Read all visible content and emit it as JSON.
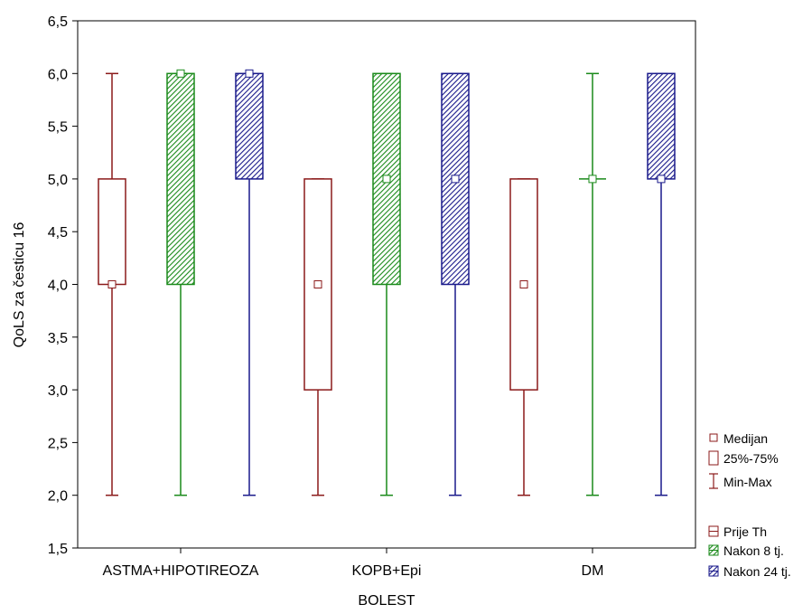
{
  "chart_data": {
    "type": "box",
    "xlabel": "BOLEST",
    "ylabel": "QoLS za česticu 16",
    "ylim": [
      1.5,
      6.5
    ],
    "yticks": [
      "1,5",
      "2,0",
      "2,5",
      "3,0",
      "3,5",
      "4,0",
      "4,5",
      "5,0",
      "5,5",
      "6,0",
      "6,5"
    ],
    "categories": [
      "ASTMA+HIPOTIREOZA",
      "KOPB+Epi",
      "DM"
    ],
    "series": [
      {
        "name": "Prije Th",
        "color": "#8b1a1a",
        "pattern": "none",
        "boxes": [
          {
            "min": 2.0,
            "q1": 4.0,
            "median": 4.0,
            "q3": 5.0,
            "max": 6.0
          },
          {
            "min": 2.0,
            "q1": 3.0,
            "median": 4.0,
            "q3": 5.0,
            "max": 5.0
          },
          {
            "min": 2.0,
            "q1": 3.0,
            "median": 4.0,
            "q3": 5.0,
            "max": 5.0
          }
        ]
      },
      {
        "name": "Nakon 8 tj.",
        "color": "#1a8a1a",
        "pattern": "hatch",
        "boxes": [
          {
            "min": 2.0,
            "q1": 4.0,
            "median": 6.0,
            "q3": 6.0,
            "max": 6.0
          },
          {
            "min": 2.0,
            "q1": 4.0,
            "median": 5.0,
            "q3": 6.0,
            "max": 6.0
          },
          {
            "min": 2.0,
            "q1": 5.0,
            "median": 5.0,
            "q3": 5.0,
            "max": 6.0
          }
        ]
      },
      {
        "name": "Nakon 24 tj.",
        "color": "#1a1a8b",
        "pattern": "hatch",
        "boxes": [
          {
            "min": 2.0,
            "q1": 5.0,
            "median": 6.0,
            "q3": 6.0,
            "max": 6.0
          },
          {
            "min": 2.0,
            "q1": 4.0,
            "median": 5.0,
            "q3": 6.0,
            "max": 6.0
          },
          {
            "min": 2.0,
            "q1": 5.0,
            "median": 5.0,
            "q3": 6.0,
            "max": 6.0
          }
        ]
      }
    ],
    "legend": {
      "placement": "bottom-right",
      "stat_items": [
        "Medijan",
        "25%-75%",
        "Min-Max"
      ],
      "series_items": [
        "Prije Th",
        "Nakon 8 tj.",
        "Nakon 24 tj."
      ]
    },
    "grid": false
  }
}
